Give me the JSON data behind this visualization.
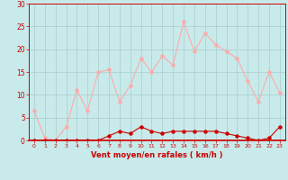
{
  "x": [
    0,
    1,
    2,
    3,
    4,
    5,
    6,
    7,
    8,
    9,
    10,
    11,
    12,
    13,
    14,
    15,
    16,
    17,
    18,
    19,
    20,
    21,
    22,
    23
  ],
  "rafales": [
    6.5,
    0.5,
    0,
    3,
    11,
    6.5,
    15,
    15.5,
    8.5,
    12,
    18,
    15,
    18.5,
    16.5,
    26,
    19.5,
    23.5,
    21,
    19.5,
    18,
    13,
    8.5,
    15,
    10.5
  ],
  "moyen": [
    0,
    0,
    0,
    0,
    0,
    0,
    0,
    1,
    2,
    1.5,
    3,
    2,
    1.5,
    2,
    2,
    2,
    2,
    2,
    1.5,
    1,
    0.5,
    0,
    0.5,
    3
  ],
  "rafales_color": "#ffaaaa",
  "moyen_color": "#cc0000",
  "background_color": "#c8eaea",
  "grid_color": "#aacccc",
  "xlabel": "Vent moyen/en rafales ( km/h )",
  "xlabel_color": "#cc0000",
  "ylim": [
    0,
    30
  ],
  "yticks": [
    0,
    5,
    10,
    15,
    20,
    25,
    30
  ],
  "xticks": [
    0,
    1,
    2,
    3,
    4,
    5,
    6,
    7,
    8,
    9,
    10,
    11,
    12,
    13,
    14,
    15,
    16,
    17,
    18,
    19,
    20,
    21,
    22,
    23
  ],
  "tick_color": "#cc0000",
  "line_width": 0.8,
  "marker_size": 2.2,
  "ylabel_fontsize": 5.5,
  "xlabel_fontsize": 6.0,
  "xtick_fontsize": 4.5,
  "ytick_fontsize": 5.5
}
